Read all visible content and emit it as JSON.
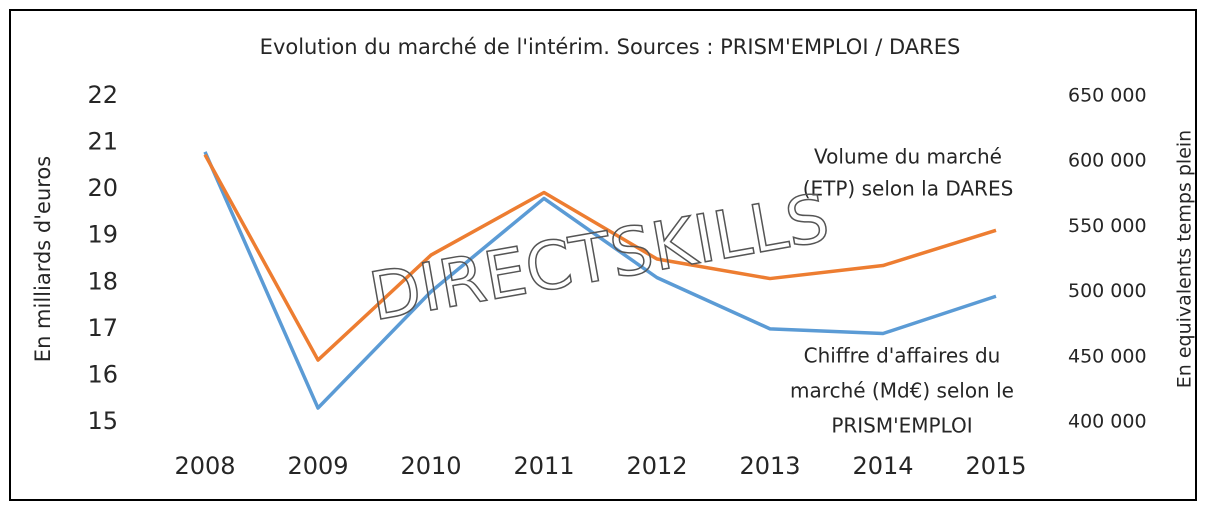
{
  "chart_data": {
    "type": "line",
    "title": "Evolution du marché de l'intérim. Sources : PRISM'EMPLOI / DARES",
    "ylabel": "En milliards d'euros",
    "y2label": "En equivalents temps plein",
    "watermark": "DIRECTSKILLS",
    "categories": [
      "2008",
      "2009",
      "2010",
      "2011",
      "2012",
      "2013",
      "2014",
      "2015"
    ],
    "ylim": [
      15,
      22
    ],
    "yticks": [
      15,
      16,
      17,
      18,
      19,
      20,
      21,
      22
    ],
    "y2lim": [
      400000,
      650000
    ],
    "y2ticks": [
      {
        "value": 400000,
        "label": "400 000"
      },
      {
        "value": 450000,
        "label": "450 000"
      },
      {
        "value": 500000,
        "label": "500 000"
      },
      {
        "value": 550000,
        "label": "550 000"
      },
      {
        "value": 600000,
        "label": "600 000"
      },
      {
        "value": 650000,
        "label": "650 000"
      }
    ],
    "series": [
      {
        "label_lines": [
          "Chiffre d'affaires du",
          "marché (Md€) selon le",
          "PRISM'EMPLOI"
        ],
        "color": "#5b9bd5",
        "values": [
          20.8,
          15.3,
          17.8,
          19.8,
          18.1,
          17.0,
          16.9,
          17.7
        ]
      },
      {
        "label_lines": [
          "Volume du marché",
          "(ETP) selon la DARES"
        ],
        "color": "#ed7d31",
        "axis": "y2",
        "values": [
          605000,
          447500,
          528000,
          576000,
          525000,
          510000,
          520000,
          547000
        ]
      }
    ]
  }
}
